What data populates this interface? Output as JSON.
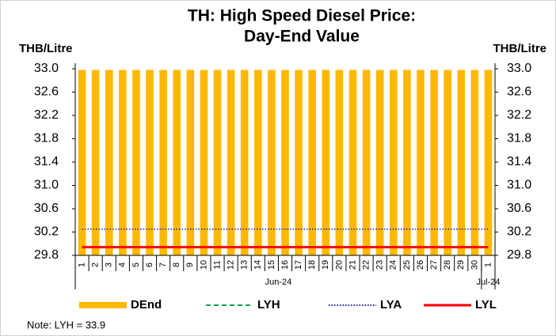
{
  "chart_data": {
    "type": "bar",
    "title": "TH: High Speed Diesel Price:",
    "subtitle": "Day-End Value",
    "y_label": "THB/Litre",
    "y2_label": "THB/Litre",
    "categories": [
      "1",
      "2",
      "3",
      "4",
      "5",
      "6",
      "7",
      "8",
      "9",
      "10",
      "11",
      "12",
      "13",
      "14",
      "15",
      "16",
      "17",
      "18",
      "19",
      "20",
      "21",
      "22",
      "23",
      "24",
      "25",
      "26",
      "27",
      "28",
      "29",
      "30",
      "1"
    ],
    "groups": [
      {
        "label": "Jun-24",
        "count": 30
      },
      {
        "label": "Jul-24",
        "count": 1
      }
    ],
    "series": [
      {
        "name": "DEnd",
        "type": "bar",
        "color": "#ffb800",
        "values": [
          32.98,
          32.98,
          32.98,
          32.98,
          32.98,
          32.98,
          32.98,
          32.98,
          32.98,
          32.98,
          32.98,
          32.98,
          32.98,
          32.98,
          32.98,
          32.98,
          32.98,
          32.98,
          32.98,
          32.98,
          32.98,
          32.98,
          32.98,
          32.98,
          32.98,
          32.98,
          32.98,
          32.98,
          32.98,
          32.98,
          32.98
        ]
      },
      {
        "name": "LYH",
        "type": "line",
        "dash": "dashed",
        "color": "#00b050",
        "values": [
          33.9,
          33.9,
          33.9,
          33.9,
          33.9,
          33.9,
          33.9,
          33.9,
          33.9,
          33.9,
          33.9,
          33.9,
          33.9,
          33.9,
          33.9,
          33.9,
          33.9,
          33.9,
          33.9,
          33.9,
          33.9,
          33.9,
          33.9,
          33.9,
          33.9,
          33.9,
          33.9,
          33.9,
          33.9,
          33.9,
          33.9
        ]
      },
      {
        "name": "LYA",
        "type": "line",
        "dash": "dotted",
        "color": "#1f1fb4",
        "values": [
          30.25,
          30.25,
          30.25,
          30.25,
          30.25,
          30.25,
          30.25,
          30.25,
          30.25,
          30.25,
          30.25,
          30.25,
          30.25,
          30.25,
          30.25,
          30.25,
          30.25,
          30.25,
          30.25,
          30.25,
          30.25,
          30.25,
          30.25,
          30.25,
          30.25,
          30.25,
          30.25,
          30.25,
          30.25,
          30.25,
          30.25
        ]
      },
      {
        "name": "LYL",
        "type": "line",
        "dash": "solid",
        "color": "#ff0000",
        "values": [
          29.94,
          29.94,
          29.94,
          29.94,
          29.94,
          29.94,
          29.94,
          29.94,
          29.94,
          29.94,
          29.94,
          29.94,
          29.94,
          29.94,
          29.94,
          29.94,
          29.94,
          29.94,
          29.94,
          29.94,
          29.94,
          29.94,
          29.94,
          29.94,
          29.94,
          29.94,
          29.94,
          29.94,
          29.94,
          29.94,
          29.94
        ]
      }
    ],
    "ylim": [
      29.8,
      33.0
    ],
    "yticks": [
      29.8,
      30.2,
      30.6,
      {
        "value": 31,
        "label": "31.0"
      },
      31.4,
      31.8,
      32.2,
      32.6,
      {
        "value": 33,
        "label": "33.0"
      }
    ],
    "y2lim": [
      29.8,
      33.0
    ],
    "y2ticks": [
      29.8,
      30.2,
      30.6,
      {
        "value": 31,
        "label": "31.0"
      },
      31.4,
      31.8,
      32.2,
      32.6,
      {
        "value": 33,
        "label": "33.0"
      }
    ],
    "grid": false,
    "legend": "bottom",
    "note": "Note: LYH = 33.9"
  }
}
